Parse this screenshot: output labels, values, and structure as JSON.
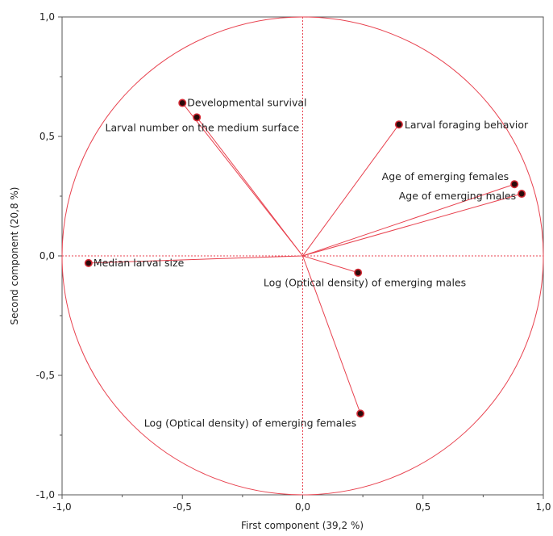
{
  "chart_data": {
    "type": "scatter",
    "subtype": "correlation-circle",
    "xlabel": "First component  (39,2 %)",
    "ylabel": "Second component  (20,8 %)",
    "xlim": [
      -1.0,
      1.0
    ],
    "ylim": [
      -1.0,
      1.0
    ],
    "xticks": [
      "-1,0",
      "-0,5",
      "0,0",
      "0,5",
      "1,0"
    ],
    "yticks": [
      "1,0",
      "0,5",
      "0,0",
      "-0,5",
      "-1,0"
    ],
    "grid": false,
    "reference_lines": "dotted lines at x=0 and y=0",
    "circle_radius": 1.0,
    "colors": {
      "circle": "#e8424f",
      "vectors": "#e8424f",
      "reference_lines": "#e8424f",
      "point_fill": "#2a0a0a",
      "point_stroke": "#d42a35",
      "axis": "#555555"
    },
    "variables": [
      {
        "name": "Developmental survival",
        "x": -0.5,
        "y": 0.64
      },
      {
        "name": "Larval number on the medium surface",
        "x": -0.44,
        "y": 0.58
      },
      {
        "name": "Larval foraging behavior",
        "x": 0.4,
        "y": 0.55
      },
      {
        "name": "Age of emerging females",
        "x": 0.88,
        "y": 0.3
      },
      {
        "name": "Age of emerging males",
        "x": 0.91,
        "y": 0.26
      },
      {
        "name": "Median larval size",
        "x": -0.89,
        "y": -0.03
      },
      {
        "name": "Log (Optical density) of emerging males",
        "x": 0.23,
        "y": -0.07
      },
      {
        "name": "Log (Optical density) of emerging females",
        "x": 0.24,
        "y": -0.66
      }
    ]
  }
}
